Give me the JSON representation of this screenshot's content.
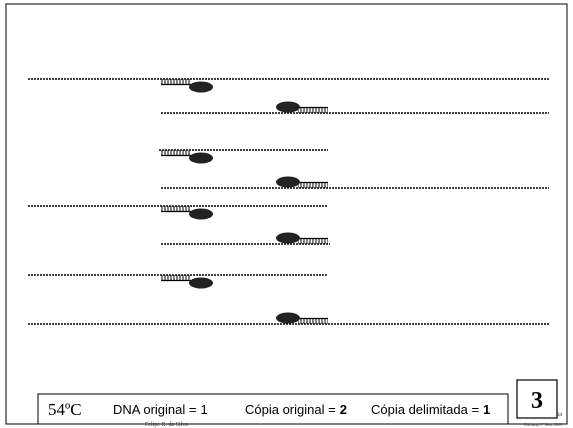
{
  "temperature": "54ºC",
  "legend": [
    {
      "label": "DNA original =",
      "count": 1
    },
    {
      "label": "Cópia original =",
      "count": 2
    },
    {
      "label": "Cópia delimitada =",
      "count": 1
    }
  ],
  "step": "3",
  "footer": {
    "author": "Felipe R. da Silva",
    "institution": "Unicamp, 1º Sem. 2009",
    "slide_number": "34"
  }
}
